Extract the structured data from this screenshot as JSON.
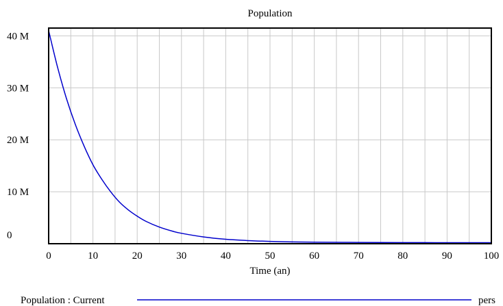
{
  "chart_data": {
    "type": "line",
    "title": "Population",
    "xlabel": "Time (an)",
    "ylabel": "",
    "xlim": [
      0,
      100
    ],
    "ylim": [
      0,
      41500000
    ],
    "x_ticks": [
      0,
      10,
      20,
      30,
      40,
      50,
      60,
      70,
      80,
      90,
      100
    ],
    "y_ticks": [
      {
        "value": 0,
        "label": "0"
      },
      {
        "value": 10000000,
        "label": "10 M"
      },
      {
        "value": 20000000,
        "label": "20 M"
      },
      {
        "value": 30000000,
        "label": "30 M"
      },
      {
        "value": 40000000,
        "label": "40 M"
      }
    ],
    "grid": true,
    "legend_position": "bottom",
    "series": [
      {
        "name": "Population : Current",
        "unit": "pers",
        "color": "#0000cc",
        "x": [
          0,
          2,
          4,
          6,
          8,
          10,
          12,
          14,
          16,
          18,
          20,
          22,
          25,
          28,
          30,
          35,
          40,
          45,
          50,
          55,
          60,
          70,
          80,
          90,
          100
        ],
        "y": [
          41000000,
          34000000,
          28000000,
          23000000,
          18800000,
          15200000,
          12400000,
          10000000,
          8000000,
          6500000,
          5300000,
          4300000,
          3200000,
          2400000,
          2000000,
          1300000,
          850000,
          600000,
          450000,
          350000,
          300000,
          250000,
          220000,
          200000,
          200000
        ]
      }
    ]
  }
}
